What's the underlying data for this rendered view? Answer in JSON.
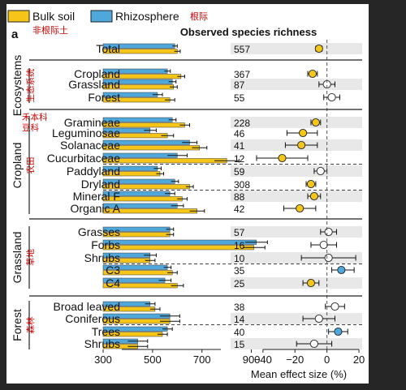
{
  "legend": [
    {
      "label": "Bulk soil",
      "color": "#f5c518",
      "annotation_cn": "非根际土"
    },
    {
      "label": "Rhizosphere",
      "color": "#4fa8dc",
      "annotation_cn": "根际"
    }
  ],
  "panel_label": "a",
  "colors": {
    "bulk": "#f5c518",
    "rhizo": "#4fa8dc",
    "annotation": "#cc0000",
    "stripe": "#e8e8e8",
    "null_point": "#ffffff"
  },
  "chart_data": {
    "type": "bar",
    "title": "Observed species richness",
    "left_panel": {
      "xlim": [
        300,
        1000
      ],
      "xticks": [
        300,
        500,
        700,
        900
      ],
      "xlabel": ""
    },
    "right_panel": {
      "xlabel": "Mean effect size (%)",
      "xlim": [
        -45,
        22
      ],
      "xticks": [
        -40,
        -20,
        0,
        20
      ],
      "zero_line": "dashed"
    },
    "groups": [
      {
        "name": "",
        "annotation_cn": "",
        "rows": [
          "Total"
        ]
      },
      {
        "name": "Ecosystems",
        "annotation_cn": "生态系统",
        "rows": [
          "Cropland",
          "Grassland",
          "Forest"
        ]
      },
      {
        "name": "Cropland",
        "annotation_cn": "农田",
        "rows": [
          "Gramineae",
          "Leguminosae",
          "Solanaceae",
          "Cucurbitaceae",
          "Paddyland",
          "Dryland",
          "Mineral F",
          "Organic A"
        ]
      },
      {
        "name": "Grassland",
        "annotation_cn": "草地",
        "rows": [
          "Grasses",
          "Forbs",
          "Shrubs",
          "C3",
          "C4"
        ]
      },
      {
        "name": "Forest",
        "annotation_cn": "森林",
        "rows": [
          "Broad leaved",
          "Coniferous",
          "Trees",
          "Shrubs"
        ]
      }
    ],
    "rows": [
      {
        "label": "Total",
        "n": "557",
        "bulk": 600,
        "bulk_err": 12,
        "rhizo": 590,
        "rhizo_err": 10,
        "effect": -5,
        "ci": [
          -7,
          -3
        ],
        "point": "bulk",
        "stripe": true,
        "dash_after": false
      },
      {
        "label": "Cropland",
        "n": "367",
        "bulk": 615,
        "bulk_err": 15,
        "rhizo": 560,
        "rhizo_err": 12,
        "effect": -9,
        "ci": [
          -12,
          -6
        ],
        "point": "bulk",
        "stripe": false,
        "dash_after": false
      },
      {
        "label": "Grassland",
        "n": "87",
        "bulk": 585,
        "bulk_err": 15,
        "rhizo": 580,
        "rhizo_err": 15,
        "effect": 0,
        "ci": [
          -5,
          5
        ],
        "point": "null",
        "stripe": true,
        "dash_after": false
      },
      {
        "label": "Forest",
        "n": "55",
        "bulk": 570,
        "bulk_err": 20,
        "rhizo": 520,
        "rhizo_err": 20,
        "effect": 3,
        "ci": [
          -2,
          8
        ],
        "point": "null",
        "stripe": false,
        "dash_after": false
      },
      {
        "label": "Gramineae",
        "n": "228",
        "bulk": 630,
        "bulk_err": 20,
        "rhizo": 580,
        "rhizo_err": 15,
        "effect": -7,
        "ci": [
          -10,
          -4
        ],
        "point": "bulk",
        "stripe": true,
        "dash_after": false
      },
      {
        "label": "Leguminosae",
        "n": "46",
        "bulk": 560,
        "bulk_err": 25,
        "rhizo": 490,
        "rhizo_err": 25,
        "effect": -15,
        "ci": [
          -25,
          -6
        ],
        "point": "bulk",
        "stripe": false,
        "dash_after": false
      },
      {
        "label": "Solanaceae",
        "n": "41",
        "bulk": 690,
        "bulk_err": 30,
        "rhizo": 650,
        "rhizo_err": 30,
        "effect": -16,
        "ci": [
          -26,
          -6
        ],
        "point": "bulk",
        "stripe": true,
        "dash_after": false
      },
      {
        "label": "Cucurbitaceae",
        "n": "12",
        "bulk": 800,
        "bulk_err": 50,
        "rhizo": 600,
        "rhizo_err": 40,
        "effect": -28,
        "ci": [
          -44,
          -12
        ],
        "point": "bulk",
        "stripe": false,
        "dash_after": true
      },
      {
        "label": "Paddyland",
        "n": "59",
        "bulk": 530,
        "bulk_err": 15,
        "rhizo": 520,
        "rhizo_err": 15,
        "effect": -4,
        "ci": [
          -8,
          0
        ],
        "point": "null",
        "stripe": true,
        "dash_after": false
      },
      {
        "label": "Dryland",
        "n": "308",
        "bulk": 650,
        "bulk_err": 15,
        "rhizo": 590,
        "rhizo_err": 15,
        "effect": -10,
        "ci": [
          -13,
          -7
        ],
        "point": "bulk",
        "stripe": false,
        "dash_after": true
      },
      {
        "label": "Mineral F",
        "n": "88",
        "bulk": 620,
        "bulk_err": 20,
        "rhizo": 570,
        "rhizo_err": 20,
        "effect": -8,
        "ci": [
          -12,
          -4
        ],
        "point": "bulk",
        "stripe": true,
        "dash_after": false
      },
      {
        "label": "Organic A",
        "n": "42",
        "bulk": 680,
        "bulk_err": 30,
        "rhizo": 600,
        "rhizo_err": 25,
        "effect": -17,
        "ci": [
          -27,
          -7
        ],
        "point": "bulk",
        "stripe": false,
        "dash_after": false
      },
      {
        "label": "Grasses",
        "n": "57",
        "bulk": 570,
        "bulk_err": 15,
        "rhizo": 570,
        "rhizo_err": 15,
        "effect": 1,
        "ci": [
          -4,
          6
        ],
        "point": "null",
        "stripe": true,
        "dash_after": false
      },
      {
        "label": "Forbs",
        "n": "16",
        "bulk": 910,
        "bulk_err": 45,
        "rhizo": 920,
        "rhizo_err": 45,
        "effect": -2,
        "ci": [
          -10,
          6
        ],
        "point": "null",
        "stripe": false,
        "dash_after": false
      },
      {
        "label": "Shrubs",
        "n": "10",
        "bulk": 490,
        "bulk_err": 20,
        "rhizo": 490,
        "rhizo_err": 25,
        "effect": 1,
        "ci": [
          -16,
          18
        ],
        "point": "null",
        "stripe": true,
        "dash_after": true
      },
      {
        "label": "C3",
        "n": "35",
        "bulk": 580,
        "bulk_err": 20,
        "rhizo": 560,
        "rhizo_err": 15,
        "effect": 9,
        "ci": [
          3,
          17
        ],
        "point": "rhizo",
        "stripe": false,
        "dash_after": false
      },
      {
        "label": "C4",
        "n": "25",
        "bulk": 600,
        "bulk_err": 25,
        "rhizo": 550,
        "rhizo_err": 25,
        "effect": -10,
        "ci": [
          -15,
          -5
        ],
        "point": "bulk",
        "stripe": true,
        "dash_after": false
      },
      {
        "label": "Broad leaved",
        "n": "38",
        "bulk": 510,
        "bulk_err": 20,
        "rhizo": 490,
        "rhizo_err": 20,
        "effect": 5,
        "ci": [
          -1,
          11
        ],
        "point": "null",
        "stripe": false,
        "dash_after": false
      },
      {
        "label": "Coniferous",
        "n": "14",
        "bulk": 570,
        "bulk_err": 40,
        "rhizo": 570,
        "rhizo_err": 40,
        "effect": -5,
        "ci": [
          -15,
          5
        ],
        "point": "null",
        "stripe": true,
        "dash_after": true
      },
      {
        "label": "Trees",
        "n": "40",
        "bulk": 540,
        "bulk_err": 20,
        "rhizo": 560,
        "rhizo_err": 20,
        "effect": 7,
        "ci": [
          1,
          13
        ],
        "point": "rhizo",
        "stripe": false,
        "dash_after": false
      },
      {
        "label": "Shrubs",
        "n": "15",
        "bulk": 440,
        "bulk_err": 40,
        "rhizo": 440,
        "rhizo_err": 40,
        "effect": -8,
        "ci": [
          -19,
          3
        ],
        "point": "null",
        "stripe": true,
        "dash_after": false
      }
    ],
    "row_annotations_cn": [
      {
        "row": "Gramineae",
        "text": "禾本科"
      },
      {
        "row": "Leguminosae",
        "text": "豆科"
      }
    ]
  }
}
